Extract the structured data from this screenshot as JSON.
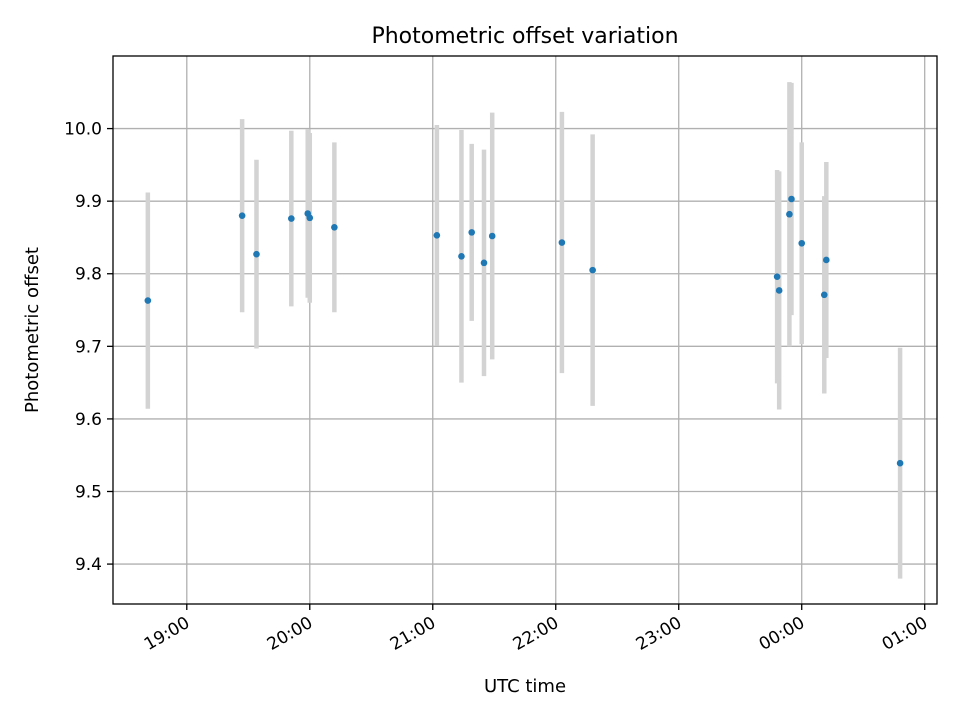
{
  "chart_data": {
    "type": "scatter",
    "title": "Photometric offset variation",
    "xlabel": "UTC time",
    "ylabel": "Photometric offset",
    "x_tick_labels": [
      "19:00",
      "20:00",
      "21:00",
      "22:00",
      "23:00",
      "00:00",
      "01:00"
    ],
    "x_ticks": [
      "18:59",
      "19:59",
      "20:59",
      "21:59",
      "22:59",
      "23:59",
      "00:59"
    ],
    "y_ticks": [
      9.4,
      9.5,
      9.6,
      9.7,
      9.8,
      9.9,
      10.0
    ],
    "xlim": [
      "18:23",
      "01:05"
    ],
    "ylim": [
      9.345,
      10.1
    ],
    "grid": true,
    "colors": {
      "marker": "#1f77b4",
      "errorbar": "#d3d3d3",
      "grid": "#b0b0b0"
    },
    "series": [
      {
        "points": [
          {
            "x": "18:40",
            "y": 9.763,
            "err": 0.149
          },
          {
            "x": "19:26",
            "y": 9.88,
            "err": 0.133
          },
          {
            "x": "19:33",
            "y": 9.827,
            "err": 0.13
          },
          {
            "x": "19:50",
            "y": 9.876,
            "err": 0.121
          },
          {
            "x": "19:58",
            "y": 9.883,
            "err": 0.116
          },
          {
            "x": "19:59",
            "y": 9.877,
            "err": 0.117
          },
          {
            "x": "20:11",
            "y": 9.864,
            "err": 0.117
          },
          {
            "x": "21:01",
            "y": 9.853,
            "err": 0.152
          },
          {
            "x": "21:13",
            "y": 9.824,
            "err": 0.174
          },
          {
            "x": "21:18",
            "y": 9.857,
            "err": 0.122
          },
          {
            "x": "21:24",
            "y": 9.815,
            "err": 0.156
          },
          {
            "x": "21:28",
            "y": 9.852,
            "err": 0.17
          },
          {
            "x": "22:02",
            "y": 9.843,
            "err": 0.18
          },
          {
            "x": "22:17",
            "y": 9.805,
            "err": 0.187
          },
          {
            "x": "23:47",
            "y": 9.796,
            "err": 0.147
          },
          {
            "x": "23:48",
            "y": 9.777,
            "err": 0.164
          },
          {
            "x": "23:53",
            "y": 9.882,
            "err": 0.182
          },
          {
            "x": "23:54",
            "y": 9.903,
            "err": 0.16
          },
          {
            "x": "23:59",
            "y": 9.842,
            "err": 0.139
          },
          {
            "x": "00:10",
            "y": 9.771,
            "err": 0.136
          },
          {
            "x": "00:11",
            "y": 9.819,
            "err": 0.135
          },
          {
            "x": "00:47",
            "y": 9.539,
            "err": 0.159
          }
        ]
      }
    ]
  }
}
